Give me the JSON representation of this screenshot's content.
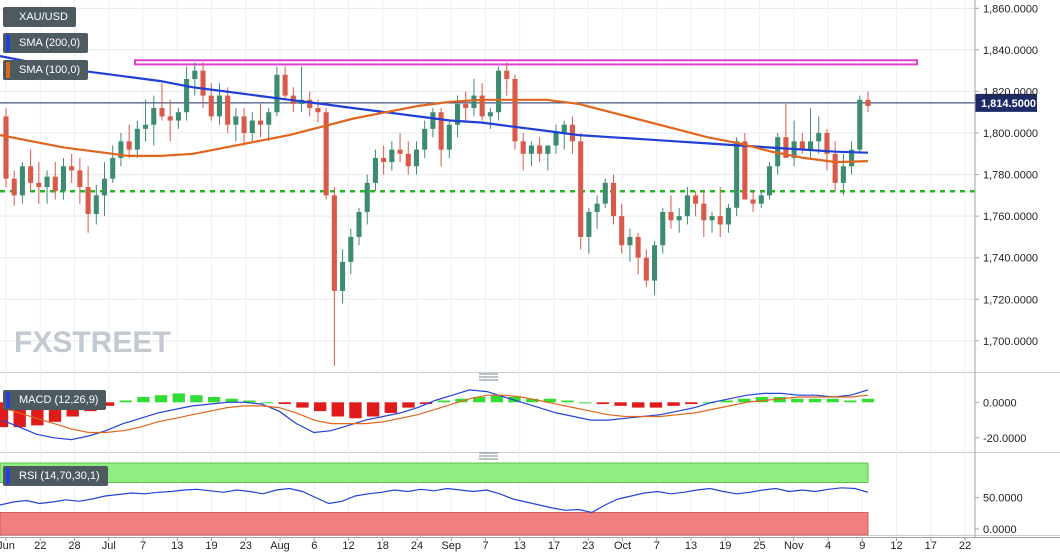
{
  "chart_data": {
    "type": "candlestick",
    "symbol": "XAU/USD",
    "last_price": "1,814.5000",
    "watermark": "FXSTREET",
    "price_axis": {
      "ticks": [
        "1,860.0000",
        "1,840.0000",
        "1,820.0000",
        "1,800.0000",
        "1,780.0000",
        "1,760.0000",
        "1,740.0000",
        "1,720.0000",
        "1,700.0000"
      ],
      "range": [
        1685,
        1864
      ]
    },
    "x_ticks": [
      "Jun",
      "22",
      "28",
      "Jul",
      "7",
      "13",
      "19",
      "23",
      "Aug",
      "6",
      "12",
      "18",
      "24",
      "Sep",
      "7",
      "13",
      "17",
      "23",
      "Oct",
      "7",
      "13",
      "19",
      "25",
      "Nov",
      "4",
      "9",
      "12",
      "17",
      "22"
    ],
    "candles_ohlc": [
      [
        1808,
        1812,
        1774,
        1778
      ],
      [
        1778,
        1782,
        1765,
        1770
      ],
      [
        1770,
        1786,
        1766,
        1784
      ],
      [
        1784,
        1792,
        1772,
        1776
      ],
      [
        1776,
        1786,
        1766,
        1774
      ],
      [
        1774,
        1782,
        1766,
        1779
      ],
      [
        1779,
        1786,
        1768,
        1772
      ],
      [
        1772,
        1788,
        1768,
        1784
      ],
      [
        1784,
        1790,
        1776,
        1782
      ],
      [
        1782,
        1788,
        1766,
        1774
      ],
      [
        1774,
        1784,
        1752,
        1761
      ],
      [
        1761,
        1775,
        1756,
        1770
      ],
      [
        1770,
        1786,
        1760,
        1778
      ],
      [
        1778,
        1794,
        1776,
        1788
      ],
      [
        1788,
        1800,
        1784,
        1796
      ],
      [
        1796,
        1804,
        1788,
        1792
      ],
      [
        1792,
        1806,
        1788,
        1802
      ],
      [
        1802,
        1816,
        1796,
        1804
      ],
      [
        1804,
        1818,
        1794,
        1812
      ],
      [
        1812,
        1824,
        1806,
        1808
      ],
      [
        1808,
        1816,
        1796,
        1806
      ],
      [
        1806,
        1812,
        1802,
        1810
      ],
      [
        1810,
        1832,
        1806,
        1826
      ],
      [
        1826,
        1834,
        1818,
        1830
      ],
      [
        1830,
        1834,
        1812,
        1818
      ],
      [
        1818,
        1824,
        1806,
        1808
      ],
      [
        1808,
        1824,
        1804,
        1818
      ],
      [
        1818,
        1822,
        1800,
        1804
      ],
      [
        1804,
        1812,
        1796,
        1808
      ],
      [
        1808,
        1812,
        1794,
        1800
      ],
      [
        1800,
        1810,
        1796,
        1806
      ],
      [
        1806,
        1814,
        1798,
        1804
      ],
      [
        1804,
        1812,
        1796,
        1810
      ],
      [
        1810,
        1832,
        1808,
        1828
      ],
      [
        1828,
        1832,
        1816,
        1818
      ],
      [
        1818,
        1822,
        1810,
        1814
      ],
      [
        1814,
        1832,
        1810,
        1816
      ],
      [
        1816,
        1820,
        1808,
        1812
      ],
      [
        1812,
        1816,
        1805,
        1810
      ],
      [
        1810,
        1812,
        1768,
        1770
      ],
      [
        1770,
        1774,
        1688,
        1724
      ],
      [
        1724,
        1744,
        1718,
        1738
      ],
      [
        1738,
        1754,
        1732,
        1750
      ],
      [
        1750,
        1764,
        1746,
        1762
      ],
      [
        1762,
        1780,
        1756,
        1776
      ],
      [
        1776,
        1792,
        1772,
        1788
      ],
      [
        1788,
        1794,
        1780,
        1786
      ],
      [
        1786,
        1796,
        1782,
        1792
      ],
      [
        1792,
        1800,
        1786,
        1790
      ],
      [
        1790,
        1796,
        1780,
        1784
      ],
      [
        1784,
        1796,
        1780,
        1792
      ],
      [
        1792,
        1806,
        1788,
        1802
      ],
      [
        1802,
        1812,
        1798,
        1810
      ],
      [
        1810,
        1812,
        1784,
        1792
      ],
      [
        1792,
        1806,
        1788,
        1804
      ],
      [
        1804,
        1818,
        1798,
        1814
      ],
      [
        1814,
        1820,
        1806,
        1812
      ],
      [
        1812,
        1826,
        1808,
        1818
      ],
      [
        1818,
        1824,
        1806,
        1808
      ],
      [
        1808,
        1812,
        1802,
        1810
      ],
      [
        1810,
        1832,
        1806,
        1830
      ],
      [
        1830,
        1834,
        1818,
        1826
      ],
      [
        1826,
        1828,
        1792,
        1796
      ],
      [
        1796,
        1800,
        1782,
        1790
      ],
      [
        1790,
        1796,
        1784,
        1794
      ],
      [
        1794,
        1798,
        1786,
        1790
      ],
      [
        1790,
        1794,
        1782,
        1794
      ],
      [
        1794,
        1804,
        1790,
        1800
      ],
      [
        1800,
        1806,
        1792,
        1804
      ],
      [
        1804,
        1808,
        1790,
        1796
      ],
      [
        1796,
        1800,
        1744,
        1750
      ],
      [
        1750,
        1764,
        1742,
        1762
      ],
      [
        1762,
        1770,
        1754,
        1766
      ],
      [
        1766,
        1778,
        1764,
        1776
      ],
      [
        1776,
        1780,
        1756,
        1760
      ],
      [
        1760,
        1766,
        1742,
        1746
      ],
      [
        1746,
        1754,
        1738,
        1750
      ],
      [
        1750,
        1752,
        1732,
        1740
      ],
      [
        1740,
        1744,
        1726,
        1729
      ],
      [
        1729,
        1748,
        1722,
        1746
      ],
      [
        1746,
        1764,
        1742,
        1762
      ],
      [
        1762,
        1770,
        1754,
        1758
      ],
      [
        1758,
        1764,
        1752,
        1760
      ],
      [
        1760,
        1774,
        1756,
        1770
      ],
      [
        1770,
        1772,
        1760,
        1766
      ],
      [
        1766,
        1772,
        1750,
        1758
      ],
      [
        1758,
        1762,
        1752,
        1760
      ],
      [
        1760,
        1774,
        1750,
        1756
      ],
      [
        1756,
        1766,
        1752,
        1764
      ],
      [
        1764,
        1798,
        1760,
        1796
      ],
      [
        1796,
        1800,
        1772,
        1768
      ],
      [
        1768,
        1772,
        1762,
        1766
      ],
      [
        1766,
        1772,
        1764,
        1770
      ],
      [
        1770,
        1786,
        1768,
        1784
      ],
      [
        1784,
        1800,
        1780,
        1798
      ],
      [
        1798,
        1814,
        1794,
        1788
      ],
      [
        1788,
        1806,
        1784,
        1796
      ],
      [
        1796,
        1800,
        1790,
        1792
      ],
      [
        1792,
        1812,
        1788,
        1796
      ],
      [
        1796,
        1808,
        1790,
        1800
      ],
      [
        1800,
        1802,
        1782,
        1790
      ],
      [
        1790,
        1796,
        1772,
        1776
      ],
      [
        1776,
        1790,
        1770,
        1784
      ],
      [
        1784,
        1796,
        1780,
        1792
      ],
      [
        1792,
        1818,
        1790,
        1816
      ],
      [
        1816,
        1820,
        1810,
        1813
      ]
    ],
    "indicators": [
      {
        "name": "SMA (200,0)",
        "color": "#1f3fd6",
        "values": [
          1837,
          1834,
          1831,
          1829,
          1827,
          1825,
          1822,
          1820,
          1818,
          1816,
          1814,
          1812,
          1810,
          1808,
          1806,
          1805,
          1803,
          1801,
          1799,
          1798,
          1797,
          1796,
          1795,
          1794,
          1793,
          1792,
          1791,
          1790.5
        ]
      },
      {
        "name": "SMA (100,0)",
        "color": "#e0661e",
        "values": [
          1799,
          1796,
          1793,
          1791,
          1789,
          1789,
          1790,
          1793,
          1796,
          1799,
          1803,
          1807,
          1810,
          1813,
          1815,
          1816,
          1816,
          1816,
          1814,
          1810,
          1806,
          1802,
          1798,
          1795,
          1791,
          1788,
          1786,
          1786.5
        ]
      }
    ],
    "annotations": {
      "resistance_zone": [
        1833,
        1835
      ],
      "support_dotted": 1772,
      "last_price_line": 1814.5
    },
    "macd": {
      "label": "MACD (12,26,9)",
      "ticks": [
        "0.0000",
        "-20.0000"
      ],
      "range": [
        -28,
        12
      ],
      "histogram": [
        -14,
        -14,
        -13,
        -11,
        -8,
        -5,
        -2,
        1,
        3,
        4,
        5,
        4,
        3,
        2,
        1,
        0,
        -1,
        -3,
        -5,
        -8,
        -9,
        -8,
        -6,
        -3,
        -1,
        1,
        2,
        3,
        4,
        3,
        2,
        2,
        1,
        0,
        -1,
        -2,
        -3,
        -3,
        -2,
        -1,
        0,
        1,
        2,
        3,
        3,
        2,
        2,
        2,
        1,
        2
      ],
      "macd_line": [
        -10,
        -14,
        -18,
        -20,
        -21,
        -19,
        -16,
        -12,
        -9,
        -6,
        -4,
        -2,
        -1,
        0,
        0,
        -1,
        -5,
        -12,
        -17,
        -16,
        -13,
        -10,
        -8,
        -6,
        -3,
        1,
        4,
        7,
        6,
        3,
        0,
        -3,
        -6,
        -8,
        -10,
        -10,
        -9,
        -8,
        -7,
        -5,
        -3,
        0,
        2,
        4,
        5,
        5,
        4,
        4,
        3,
        4,
        7
      ],
      "signal_line": [
        -3,
        -6,
        -9,
        -12,
        -15,
        -17,
        -17,
        -16,
        -14,
        -11,
        -9,
        -7,
        -5,
        -3,
        -2,
        -2,
        -3,
        -6,
        -10,
        -12,
        -12,
        -12,
        -11,
        -9,
        -7,
        -4,
        -1,
        2,
        4,
        4,
        3,
        1,
        -1,
        -3,
        -5,
        -7,
        -8,
        -8,
        -8,
        -7,
        -6,
        -4,
        -2,
        0,
        1,
        2,
        3,
        3,
        3,
        3,
        4
      ]
    },
    "rsi": {
      "label": "RSI (14,70,30,1)",
      "ticks": [
        "50.0000",
        "0.0000"
      ],
      "range": [
        0,
        100
      ],
      "overbought": 70,
      "oversold": 30,
      "values": [
        40,
        44,
        46,
        42,
        44,
        47,
        45,
        48,
        52,
        54,
        56,
        55,
        57,
        58,
        60,
        61,
        59,
        57,
        60,
        58,
        55,
        60,
        62,
        58,
        50,
        42,
        45,
        52,
        55,
        57,
        60,
        58,
        61,
        59,
        62,
        60,
        58,
        60,
        55,
        48,
        44,
        40,
        36,
        33,
        34,
        30,
        40,
        48,
        52,
        56,
        58,
        55,
        57,
        60,
        62,
        58,
        55,
        57,
        60,
        62,
        58,
        60,
        58,
        61,
        63,
        62,
        57
      ]
    },
    "colors": {
      "bull": "#3d8c72",
      "bear": "#d95a4a",
      "macd_hist_pos": "#33dd33",
      "macd_hist_neg": "#e01b1b",
      "macd_line": "#2442d8",
      "signal_line": "#e0661e",
      "rsi_line": "#2442d8",
      "rsi_overbought_fill": "#8fee7f",
      "rsi_oversold_fill": "#f08080",
      "resistance": "#e23fd1",
      "support": "#22bb22",
      "last_price_bg": "#1c2a66"
    }
  }
}
